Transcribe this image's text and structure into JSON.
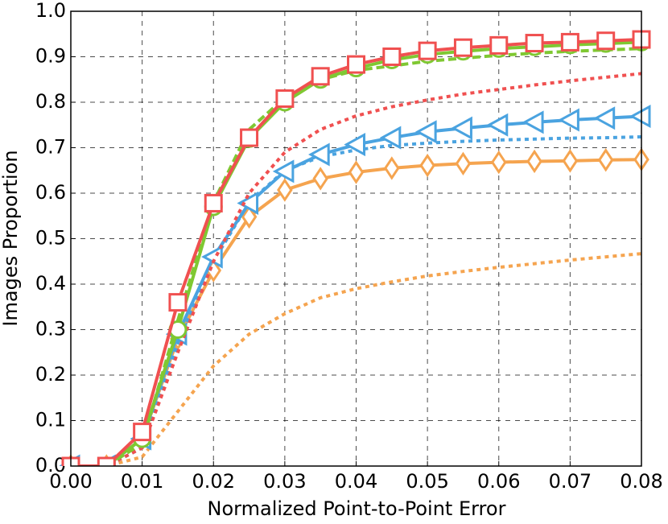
{
  "chart_data": {
    "type": "line",
    "xlabel": "Normalized Point-to-Point Error",
    "ylabel": "Images Proportion",
    "x": [
      0,
      0.005,
      0.01,
      0.015,
      0.02,
      0.025,
      0.03,
      0.035,
      0.04,
      0.045,
      0.05,
      0.055,
      0.06,
      0.065,
      0.07,
      0.075,
      0.08
    ],
    "xlim": [
      0,
      0.08
    ],
    "xticks": [
      {
        "value": 0,
        "label": "0.00"
      },
      {
        "value": 0.01,
        "label": "0.01"
      },
      {
        "value": 0.02,
        "label": "0.02"
      },
      {
        "value": 0.03,
        "label": "0.03"
      },
      {
        "value": 0.04,
        "label": "0.04"
      },
      {
        "value": 0.05,
        "label": "0.05"
      },
      {
        "value": 0.06,
        "label": "0.06"
      },
      {
        "value": 0.07,
        "label": "0.07"
      },
      {
        "value": 0.08,
        "label": "0.08"
      }
    ],
    "ylim": [
      0,
      1
    ],
    "yticks": [
      {
        "value": 0,
        "label": "0.0"
      },
      0.1,
      0.2,
      0.3,
      0.4,
      0.5,
      0.6,
      0.7,
      0.8,
      0.9,
      {
        "value": 1,
        "label": "1.0"
      }
    ],
    "grid": true,
    "series": [
      {
        "color": "#f5a44f",
        "dash": "dotted",
        "marker": null,
        "values": [
          0,
          0,
          0.02,
          0.12,
          0.22,
          0.29,
          0.335,
          0.37,
          0.39,
          0.405,
          0.418,
          0.428,
          0.437,
          0.445,
          0.453,
          0.46,
          0.467
        ]
      },
      {
        "color": "#f5a44f",
        "dash": "solid",
        "marker": "diamond",
        "values": [
          0,
          0,
          0.06,
          0.28,
          0.43,
          0.548,
          0.607,
          0.632,
          0.646,
          0.655,
          0.661,
          0.665,
          0.668,
          0.67,
          0.671,
          0.673,
          0.674
        ]
      },
      {
        "color": "#4aa3e0",
        "dash": "dotted",
        "marker": null,
        "values": [
          0,
          0,
          0.04,
          0.27,
          0.45,
          0.58,
          0.65,
          0.68,
          0.695,
          0.705,
          0.71,
          0.714,
          0.717,
          0.719,
          0.721,
          0.722,
          0.724
        ]
      },
      {
        "color": "#4aa3e0",
        "dash": "solid",
        "marker": "triangle-left",
        "values": [
          0,
          0,
          0.06,
          0.29,
          0.46,
          0.578,
          0.648,
          0.685,
          0.707,
          0.722,
          0.735,
          0.743,
          0.75,
          0.756,
          0.761,
          0.765,
          0.769
        ]
      },
      {
        "color": "#f05050",
        "dash": "dotted",
        "marker": null,
        "values": [
          0,
          0,
          0.04,
          0.25,
          0.45,
          0.6,
          0.69,
          0.74,
          0.77,
          0.79,
          0.805,
          0.818,
          0.828,
          0.838,
          0.847,
          0.855,
          0.863
        ]
      },
      {
        "color": "#7fc832",
        "dash": "dashed",
        "marker": null,
        "values": [
          0,
          0,
          0.05,
          0.32,
          0.58,
          0.74,
          0.81,
          0.85,
          0.87,
          0.88,
          0.89,
          0.897,
          0.903,
          0.908,
          0.912,
          0.915,
          0.918
        ]
      },
      {
        "color": "#7fc832",
        "dash": "solid",
        "marker": "circle",
        "values": [
          0,
          0,
          0.06,
          0.3,
          0.57,
          0.72,
          0.8,
          0.85,
          0.875,
          0.893,
          0.905,
          0.912,
          0.918,
          0.922,
          0.926,
          0.929,
          0.932
        ]
      },
      {
        "color": "#f05050",
        "dash": "solid",
        "marker": "square",
        "values": [
          0,
          0,
          0.075,
          0.36,
          0.578,
          0.722,
          0.808,
          0.857,
          0.883,
          0.9,
          0.913,
          0.92,
          0.925,
          0.93,
          0.932,
          0.935,
          0.938
        ]
      }
    ]
  }
}
